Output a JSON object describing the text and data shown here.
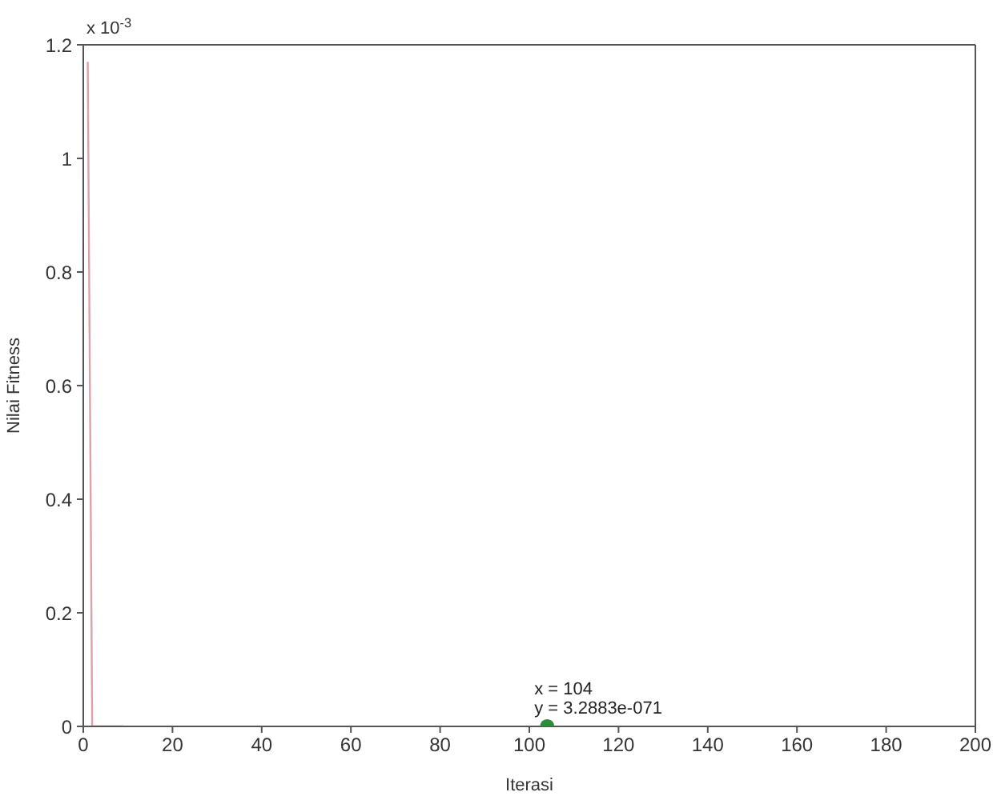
{
  "chart_data": {
    "type": "line",
    "xlabel": "Iterasi",
    "ylabel": "Nilai Fitness",
    "xlim": [
      0,
      200
    ],
    "xticks": [
      0,
      20,
      40,
      60,
      80,
      100,
      120,
      140,
      160,
      180,
      200
    ],
    "ylim": [
      0,
      1.2
    ],
    "yticks": [
      0,
      0.2,
      0.4,
      0.6,
      0.8,
      1,
      1.2
    ],
    "grid": false,
    "series": [
      {
        "color": "#e0a0a8",
        "marker": "none",
        "x": [
          1,
          2,
          3,
          5,
          9
        ],
        "values": [
          1.17,
          0,
          0,
          0,
          0
        ]
      },
      {
        "type": "scatter",
        "color": "#2e8b3a",
        "marker": "circle",
        "x": [
          104
        ],
        "values": [
          0
        ]
      }
    ],
    "annotations": [
      "x 10$^{-3}$",
      {
        "text": "x = 104",
        "x": 104,
        "y": 0
      },
      {
        "text": "y = 3.2883e-071",
        "x": 104,
        "y": 0
      }
    ]
  }
}
